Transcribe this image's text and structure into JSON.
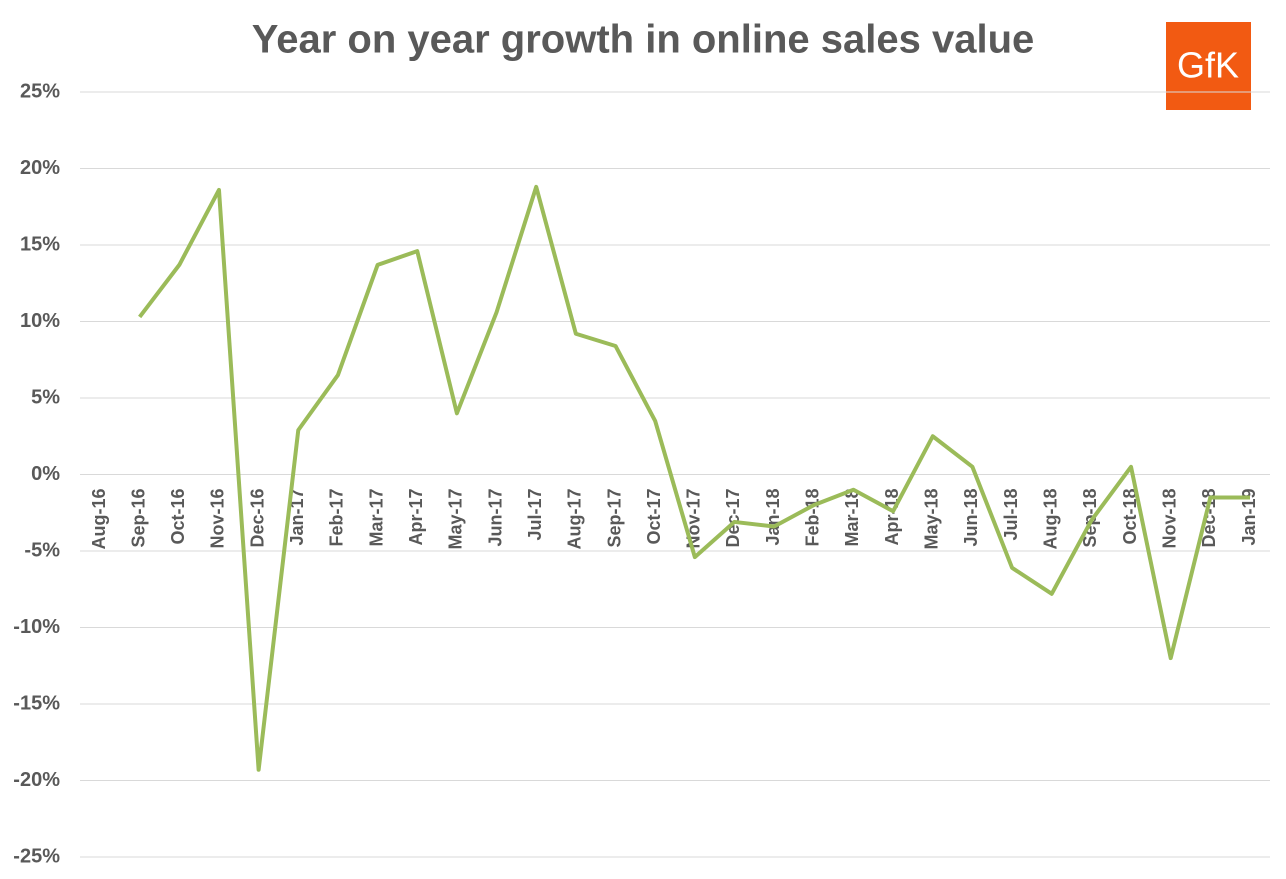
{
  "chart_data": {
    "type": "line",
    "title": "Year on year growth in online sales value",
    "logo": "GfK",
    "categories": [
      "Aug-16",
      "Sep-16",
      "Oct-16",
      "Nov-16",
      "Dec-16",
      "Jan-17",
      "Feb-17",
      "Mar-17",
      "Apr-17",
      "May-17",
      "Jun-17",
      "Jul-17",
      "Aug-17",
      "Sep-17",
      "Oct-17",
      "Nov-17",
      "Dec-17",
      "Jan-18",
      "Feb-18",
      "Mar-18",
      "Apr-18",
      "May-18",
      "Jun-18",
      "Jul-18",
      "Aug-18",
      "Sep-18",
      "Oct-18",
      "Nov-18",
      "Dec-18",
      "Jan-19"
    ],
    "series": [
      {
        "color": "#9bbb59",
        "values": [
          null,
          10.3,
          13.7,
          18.6,
          -19.3,
          2.9,
          6.5,
          13.7,
          14.6,
          4.0,
          10.6,
          18.8,
          9.2,
          8.4,
          3.5,
          -5.4,
          -3.1,
          -3.4,
          -2.0,
          -1.0,
          -2.4,
          2.5,
          0.5,
          -6.1,
          -7.8,
          -3.0,
          0.5,
          -12.0,
          -1.5,
          -1.5
        ]
      }
    ],
    "ylim": [
      -25,
      25
    ],
    "yticks": [
      {
        "value": -25,
        "label": "-25%"
      },
      {
        "value": -20,
        "label": "-20%"
      },
      {
        "value": -15,
        "label": "-15%"
      },
      {
        "value": -10,
        "label": "-10%"
      },
      {
        "value": -5,
        "label": "-5%"
      },
      {
        "value": 0,
        "label": "0%"
      },
      {
        "value": 5,
        "label": "5%"
      },
      {
        "value": 10,
        "label": "10%"
      },
      {
        "value": 15,
        "label": "15%"
      },
      {
        "value": 20,
        "label": "20%"
      },
      {
        "value": 25,
        "label": "25%"
      }
    ],
    "grid": true
  }
}
